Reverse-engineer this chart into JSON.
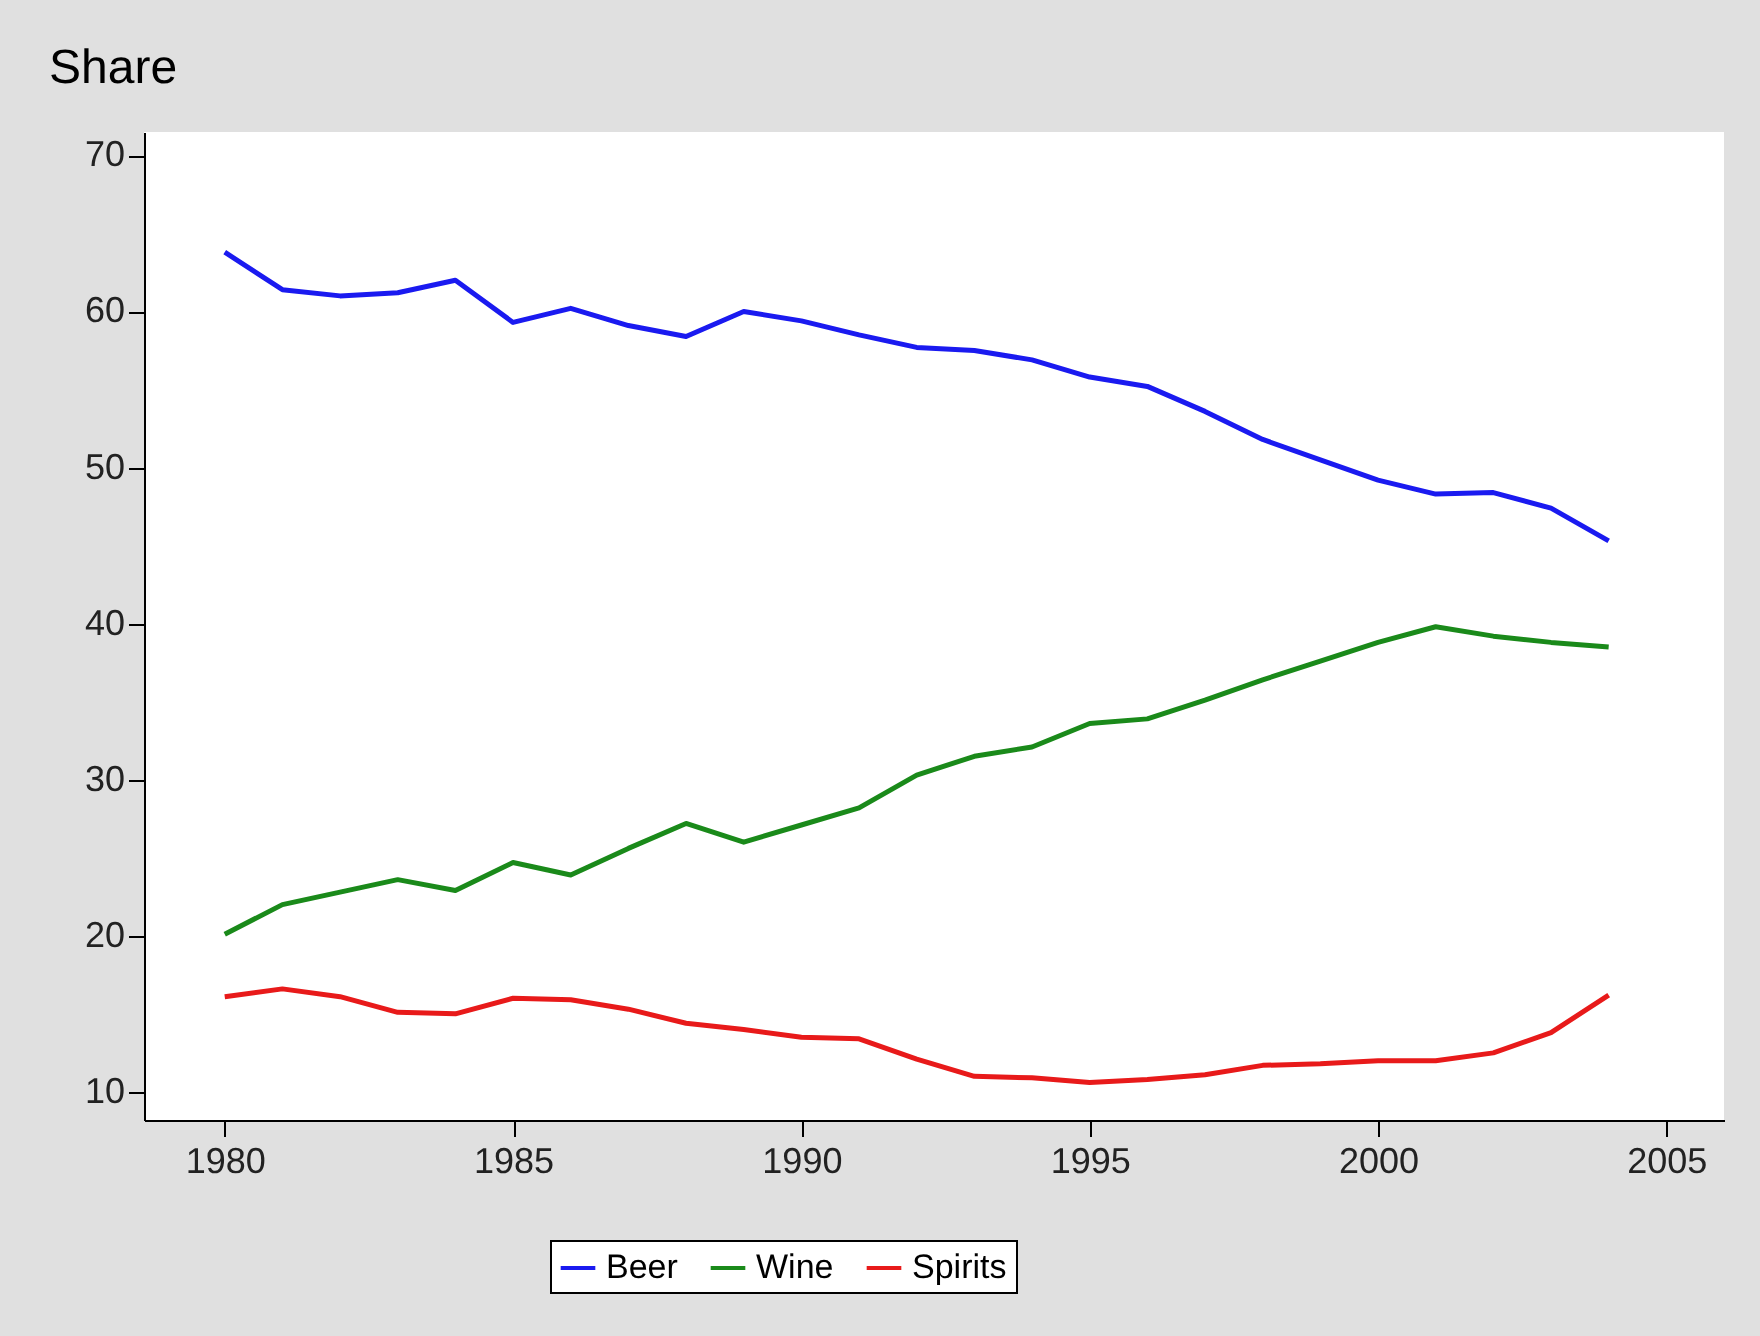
{
  "chart_data": {
    "type": "line",
    "ylabel": "Share",
    "x": [
      1980,
      1981,
      1982,
      1983,
      1984,
      1985,
      1986,
      1987,
      1988,
      1989,
      1990,
      1991,
      1992,
      1993,
      1994,
      1995,
      1996,
      1997,
      1998,
      1999,
      2000,
      2001,
      2002,
      2003,
      2004
    ],
    "series": [
      {
        "name": "Beer",
        "color": "#1a1af0",
        "values": [
          63.8,
          61.4,
          61.0,
          61.2,
          62.0,
          59.3,
          60.2,
          59.1,
          58.4,
          60.0,
          59.4,
          58.5,
          57.7,
          57.5,
          56.9,
          55.8,
          55.2,
          53.6,
          51.8,
          50.5,
          49.2,
          48.3,
          48.4,
          47.4,
          45.3
        ]
      },
      {
        "name": "Wine",
        "color": "#1a8a1a",
        "values": [
          20.1,
          22.0,
          22.8,
          23.6,
          22.9,
          24.7,
          23.9,
          25.6,
          27.2,
          26.0,
          27.1,
          28.2,
          30.3,
          31.5,
          32.1,
          33.6,
          33.9,
          35.1,
          36.4,
          37.6,
          38.8,
          39.8,
          39.2,
          38.8,
          38.5
        ]
      },
      {
        "name": "Spirits",
        "color": "#e81a1a",
        "values": [
          16.1,
          16.6,
          16.1,
          15.1,
          15.0,
          16.0,
          15.9,
          15.3,
          14.4,
          14.0,
          13.5,
          13.4,
          12.1,
          11.0,
          10.9,
          10.6,
          10.8,
          11.1,
          11.7,
          11.8,
          12.0,
          12.0,
          12.5,
          13.8,
          16.2
        ]
      }
    ],
    "xlim": [
      1978.6,
      2006
    ],
    "xticks": [
      1980,
      1985,
      1990,
      1995,
      2000,
      2005
    ],
    "ylim": [
      8.2,
      71.5
    ],
    "yticks": [
      10,
      20,
      30,
      40,
      50,
      60,
      70
    ],
    "grid": false,
    "legend": "bottom",
    "line_style": "solid",
    "marker": "none"
  }
}
